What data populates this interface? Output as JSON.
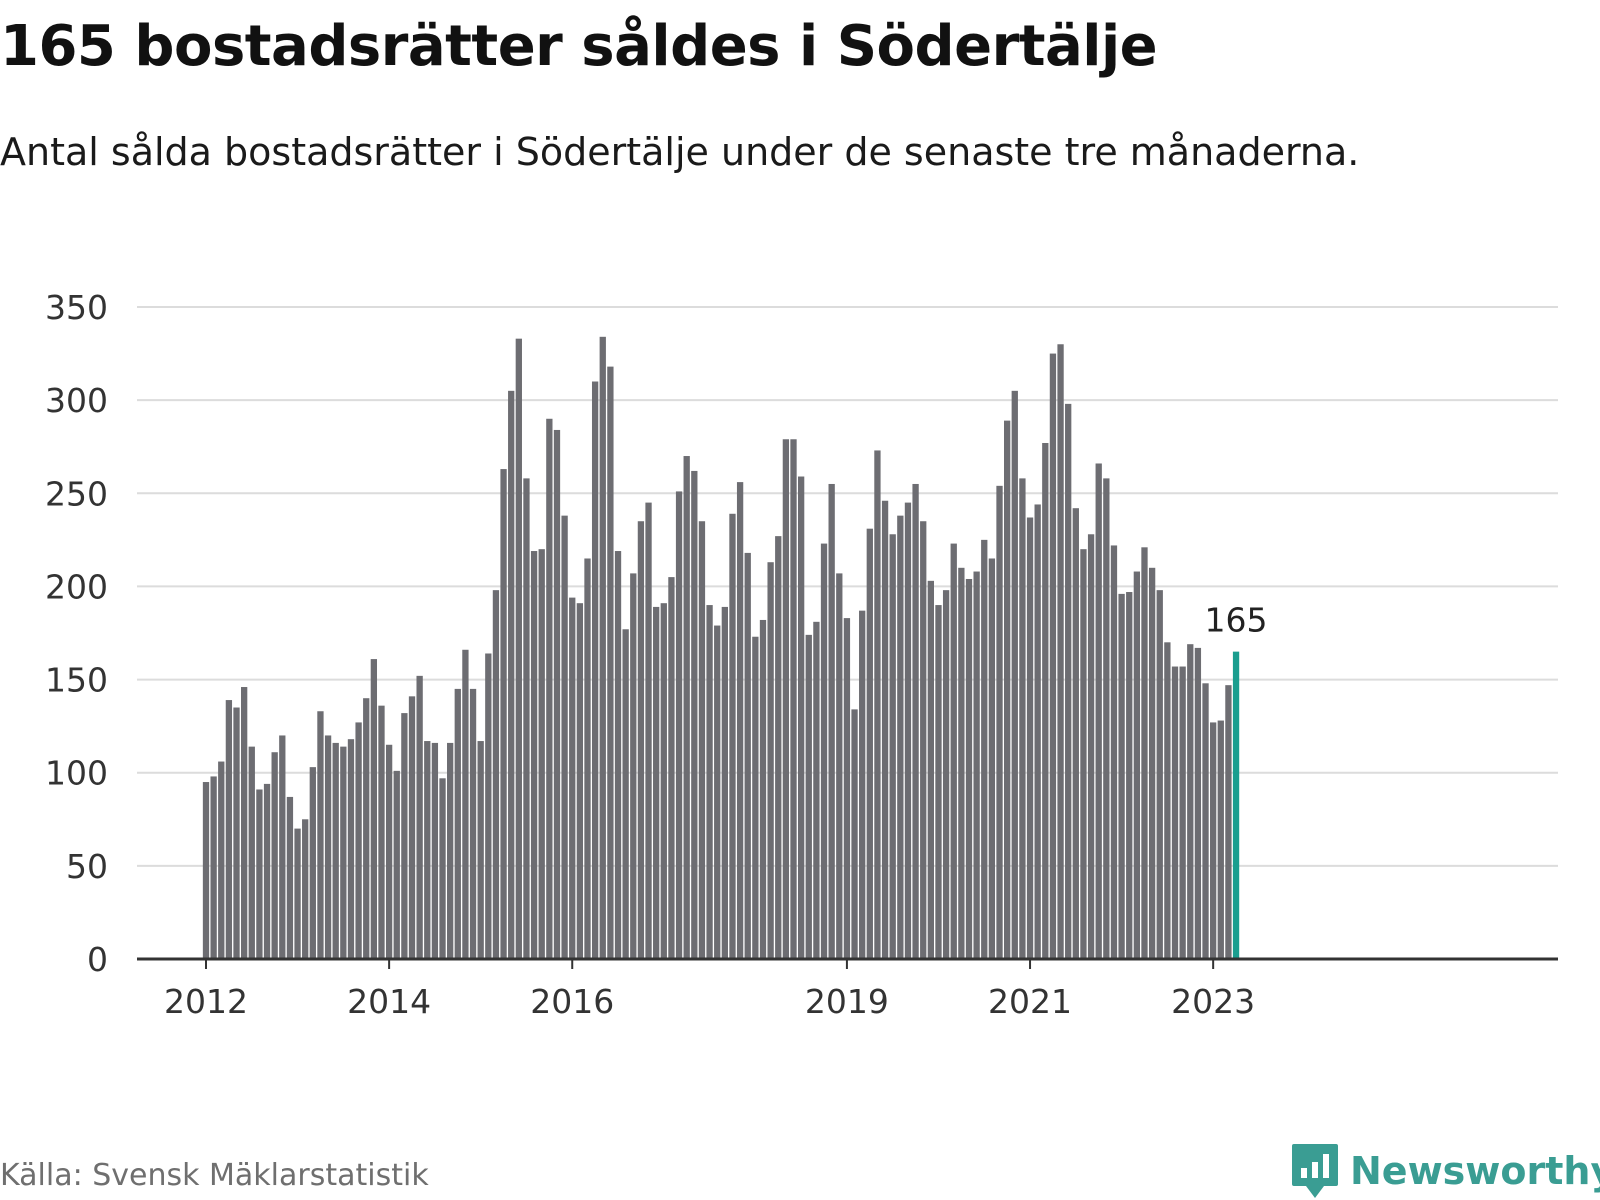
{
  "title": "165 bostadsrätter såldes i Södertälje",
  "subtitle": "Antal sålda bostadsrätter i Södertälje under de senaste tre månaderna.",
  "source": "Källa: Svensk Mäklarstatistik",
  "brand": {
    "name": "Newsworthy",
    "icon": "newsworthy-logo-icon"
  },
  "colors": {
    "bar": "#6d6d72",
    "highlight": "#1a9e8f",
    "grid": "#dcdcdc",
    "axis": "#333333",
    "brand": "#3a9d93"
  },
  "chart_data": {
    "type": "bar",
    "title": "165 bostadsrätter såldes i Södertälje",
    "xlabel": "",
    "ylabel": "",
    "ylim": [
      0,
      350
    ],
    "yticks": [
      0,
      50,
      100,
      150,
      200,
      250,
      300,
      350
    ],
    "xticks": [
      {
        "label": "2012",
        "index": 0
      },
      {
        "label": "2014",
        "index": 24
      },
      {
        "label": "2016",
        "index": 48
      },
      {
        "label": "2019",
        "index": 84
      },
      {
        "label": "2021",
        "index": 108
      },
      {
        "label": "2023",
        "index": 132
      }
    ],
    "start": "2012-01",
    "grid": true,
    "highlight_index": 135,
    "highlight_label": "165",
    "values": [
      95,
      98,
      106,
      139,
      135,
      146,
      114,
      91,
      94,
      111,
      120,
      87,
      70,
      75,
      103,
      133,
      120,
      116,
      114,
      118,
      127,
      140,
      161,
      136,
      115,
      101,
      132,
      141,
      152,
      117,
      116,
      97,
      116,
      145,
      166,
      145,
      117,
      164,
      198,
      263,
      305,
      333,
      258,
      219,
      220,
      290,
      284,
      238,
      194,
      191,
      215,
      310,
      334,
      318,
      219,
      177,
      207,
      235,
      245,
      189,
      191,
      205,
      251,
      270,
      262,
      235,
      190,
      179,
      189,
      239,
      256,
      218,
      173,
      182,
      213,
      227,
      279,
      279,
      259,
      174,
      181,
      223,
      255,
      207,
      183,
      134,
      187,
      231,
      273,
      246,
      228,
      238,
      245,
      255,
      235,
      203,
      190,
      198,
      223,
      210,
      204,
      208,
      225,
      215,
      254,
      289,
      305,
      258,
      237,
      244,
      277,
      325,
      330,
      298,
      242,
      220,
      228,
      266,
      258,
      222,
      196,
      197,
      208,
      221,
      210,
      198,
      170,
      157,
      157,
      169,
      167,
      148,
      127,
      128,
      147,
      165
    ]
  }
}
